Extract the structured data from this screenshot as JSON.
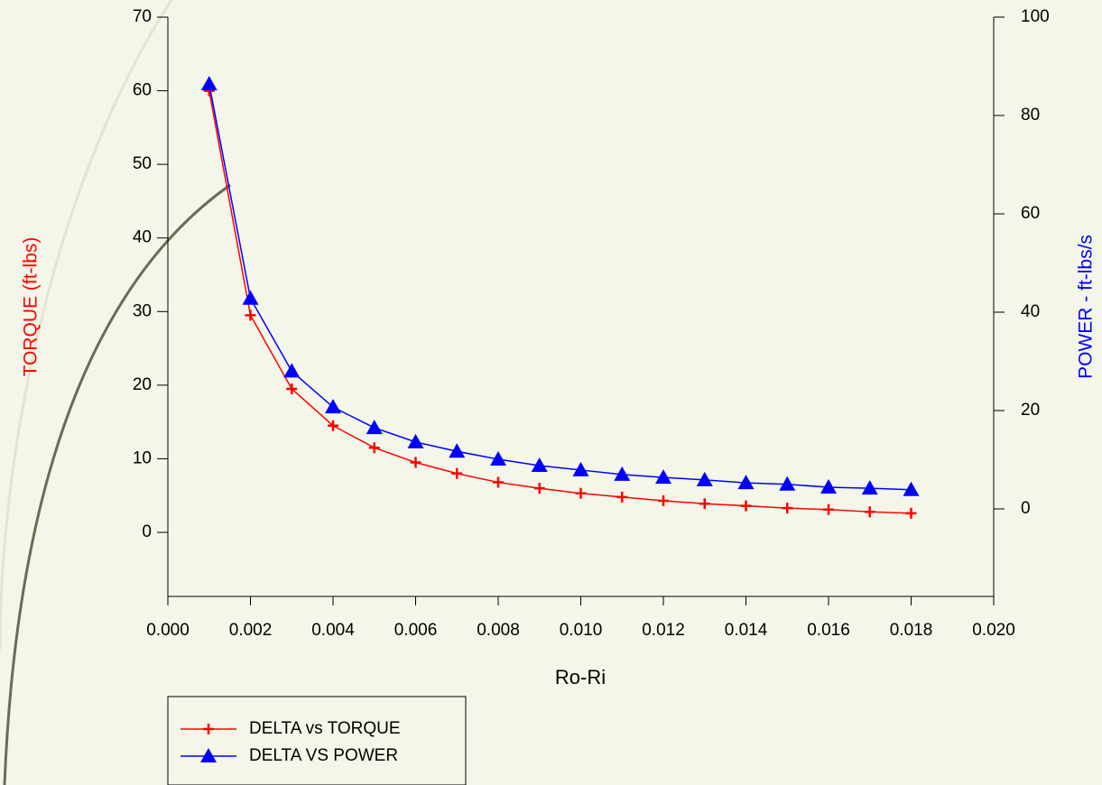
{
  "chart_data": {
    "type": "line",
    "x_label": "Ro-Ri",
    "y_label": "TORQUE (ft-lbs)",
    "y2_label": "POWER - ft-lbs/s",
    "x": [
      0.001,
      0.002,
      0.003,
      0.004,
      0.005,
      0.006,
      0.007,
      0.008,
      0.009,
      0.01,
      0.011,
      0.012,
      0.013,
      0.014,
      0.015,
      0.016,
      0.017,
      0.018
    ],
    "series": [
      {
        "name": "DELTA vs TORQUE",
        "color": "#ff0000",
        "marker": "plus",
        "values": [
          60,
          29.5,
          19.5,
          14.5,
          11.5,
          9.5,
          8,
          6.8,
          6,
          5.3,
          4.8,
          4.3,
          3.9,
          3.6,
          3.3,
          3.1,
          2.8,
          2.6
        ]
      },
      {
        "name": "DELTA VS POWER",
        "color": "#0000ff",
        "marker": "triangle",
        "axis": "y2",
        "values": [
          86.4,
          42.8,
          28,
          20.7,
          16.5,
          13.6,
          11.7,
          10.1,
          8.8,
          7.9,
          7.0,
          6.4,
          5.9,
          5.3,
          5.0,
          4.4,
          4.2,
          3.9
        ]
      }
    ],
    "xlim": [
      0,
      0.02
    ],
    "xticks": [
      {
        "value": 0,
        "label": "0.000"
      },
      {
        "value": 0.002,
        "label": "0.002"
      },
      {
        "value": 0.004,
        "label": "0.004"
      },
      {
        "value": 0.006,
        "label": "0.006"
      },
      {
        "value": 0.008,
        "label": "0.008"
      },
      {
        "value": 0.01,
        "label": "0.010"
      },
      {
        "value": 0.012,
        "label": "0.012"
      },
      {
        "value": 0.014,
        "label": "0.014"
      },
      {
        "value": 0.016,
        "label": "0.016"
      },
      {
        "value": 0.018,
        "label": "0.018"
      },
      {
        "value": 0.02,
        "label": "0.020"
      }
    ],
    "ylim": [
      -8.7,
      70
    ],
    "yticks": [
      0,
      10,
      20,
      30,
      40,
      50,
      60,
      70
    ],
    "y2lim": [
      -17.8,
      100
    ],
    "y2ticks": [
      0,
      20,
      40,
      60,
      80,
      100
    ],
    "legend": "bottom-left"
  }
}
